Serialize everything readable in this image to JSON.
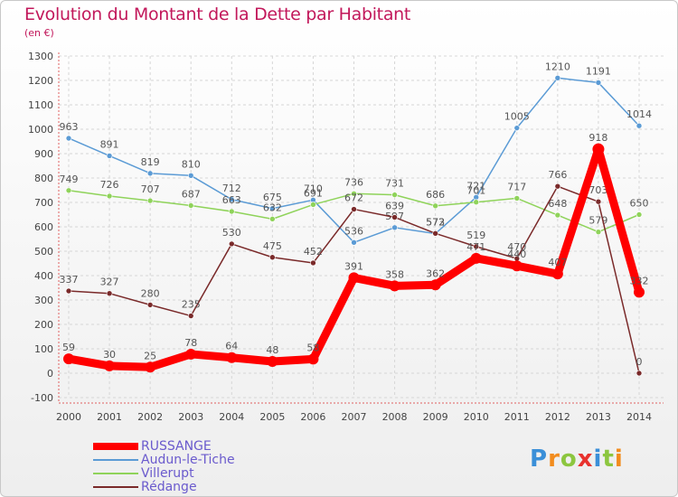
{
  "chart_data": {
    "type": "line",
    "title": "Evolution du Montant de la Dette par Habitant",
    "subtitle": "(en €)",
    "ylim": [
      -100,
      1300
    ],
    "yticks": [
      -100,
      0,
      100,
      200,
      300,
      400,
      500,
      600,
      700,
      800,
      900,
      1000,
      1100,
      1200,
      1300
    ],
    "grid": true,
    "legend_position": "bottom-left",
    "x": [
      "2000",
      "2001",
      "2002",
      "2003",
      "2004",
      "2005",
      "2006",
      "2007",
      "2008",
      "2009",
      "2010",
      "2011",
      "2012",
      "2013",
      "2014"
    ],
    "series": [
      {
        "name": "RUSSANGE",
        "color": "#ff0000",
        "values": [
          59,
          30,
          25,
          78,
          64,
          48,
          58,
          391,
          358,
          362,
          471,
          440,
          407,
          918,
          332
        ]
      },
      {
        "name": "Audun-le-Tiche",
        "color": "#5b9bd5",
        "values": [
          963,
          891,
          819,
          810,
          712,
          675,
          710,
          536,
          597,
          572,
          721,
          1005,
          1210,
          1191,
          1014
        ]
      },
      {
        "name": "Villerupt",
        "color": "#8fd35a",
        "values": [
          749,
          726,
          707,
          687,
          663,
          632,
          691,
          736,
          731,
          686,
          701,
          717,
          648,
          579,
          650
        ]
      },
      {
        "name": "Rédange",
        "color": "#7a2a2a",
        "values": [
          337,
          327,
          280,
          235,
          530,
          475,
          452,
          672,
          639,
          573,
          519,
          470,
          766,
          703,
          0
        ]
      }
    ]
  },
  "logo": {
    "text": "Proxiti"
  }
}
